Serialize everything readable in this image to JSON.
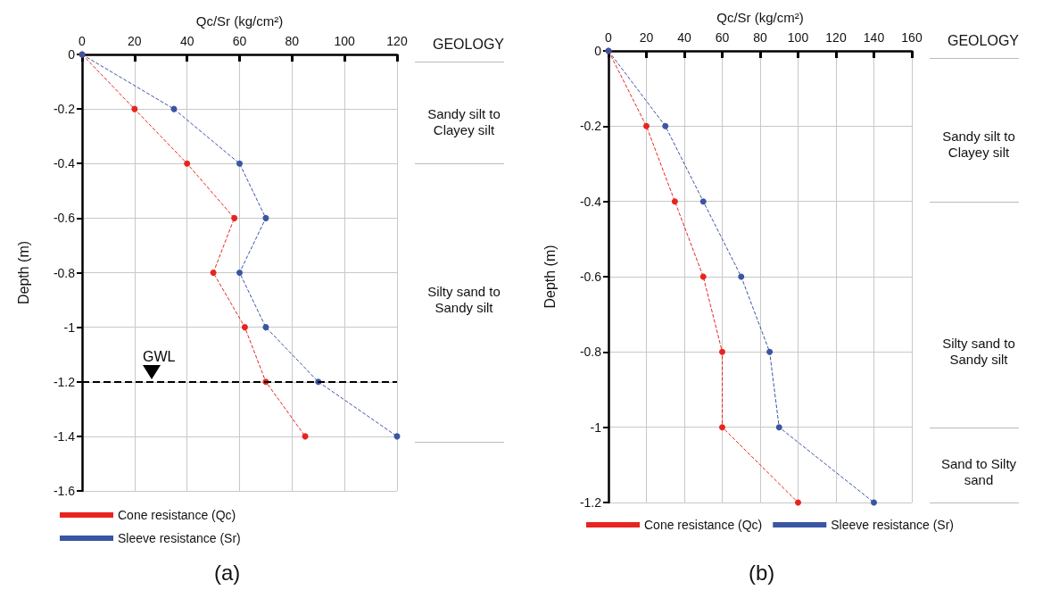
{
  "chart_data": [
    {
      "type": "line",
      "xlabel": "Qc/Sr (kg/cm²)",
      "ylabel": "Depth (m)",
      "xlim": [
        0,
        120
      ],
      "xticks": [
        0,
        20,
        40,
        60,
        80,
        100,
        120
      ],
      "ylim": [
        -1.6,
        0
      ],
      "yticks": [
        -1.6,
        -1.4,
        -1.2,
        -1,
        -0.8,
        -0.6,
        -0.4,
        -0.2,
        0
      ],
      "grid": true,
      "legend": "bottom left",
      "marker": "circle",
      "line_style": "dashed",
      "series": [
        {
          "name": "Cone resistance (Qc)",
          "color": "#e8241f",
          "x": [
            0,
            20,
            40,
            58,
            50,
            62,
            70,
            85
          ],
          "values": [
            0,
            -0.2,
            -0.4,
            -0.6,
            -0.8,
            -1,
            -1.2,
            -1.4
          ]
        },
        {
          "name": "Sleeve resistance (Sr)",
          "color": "#3a55a4",
          "x": [
            0,
            35,
            60,
            70,
            60,
            70,
            90,
            120
          ],
          "values": [
            0,
            -0.2,
            -0.4,
            -0.6,
            -0.8,
            -1,
            -1.2,
            -1.4
          ]
        }
      ],
      "ref_lines": [
        {
          "axis": "y",
          "value": -1.2,
          "label": "GWL",
          "color": "#000000",
          "line_style": "dashed"
        }
      ],
      "annotations": [
        "GEOLOGY",
        "Sandy silt to Clayey silt",
        "Silty sand to Sandy silt",
        "(a)"
      ]
    },
    {
      "type": "line",
      "xlabel": "Qc/Sr (kg/cm²)",
      "ylabel": "Depth (m)",
      "xlim": [
        0,
        160
      ],
      "xticks": [
        0,
        20,
        40,
        60,
        80,
        100,
        120,
        140,
        160
      ],
      "ylim": [
        -1.2,
        0
      ],
      "yticks": [
        -1.2,
        -1,
        -0.8,
        -0.6,
        -0.4,
        -0.2,
        0
      ],
      "grid": true,
      "legend": "bottom left",
      "marker": "circle",
      "line_style": "dashed",
      "series": [
        {
          "name": "Cone resistance (Qc)",
          "color": "#e8241f",
          "x": [
            0,
            20,
            35,
            50,
            60,
            60,
            100
          ],
          "values": [
            0,
            -0.2,
            -0.4,
            -0.6,
            -0.8,
            -1,
            -1.2
          ]
        },
        {
          "name": "Sleeve resistance (Sr)",
          "color": "#3a55a4",
          "x": [
            0,
            30,
            50,
            70,
            85,
            90,
            140
          ],
          "values": [
            0,
            -0.2,
            -0.4,
            -0.6,
            -0.8,
            -1,
            -1.2
          ]
        }
      ],
      "annotations": [
        "GEOLOGY",
        "Sandy silt to Clayey silt",
        "Silty sand to Sandy silt",
        "Sand to Silty sand",
        "(b)"
      ]
    }
  ]
}
